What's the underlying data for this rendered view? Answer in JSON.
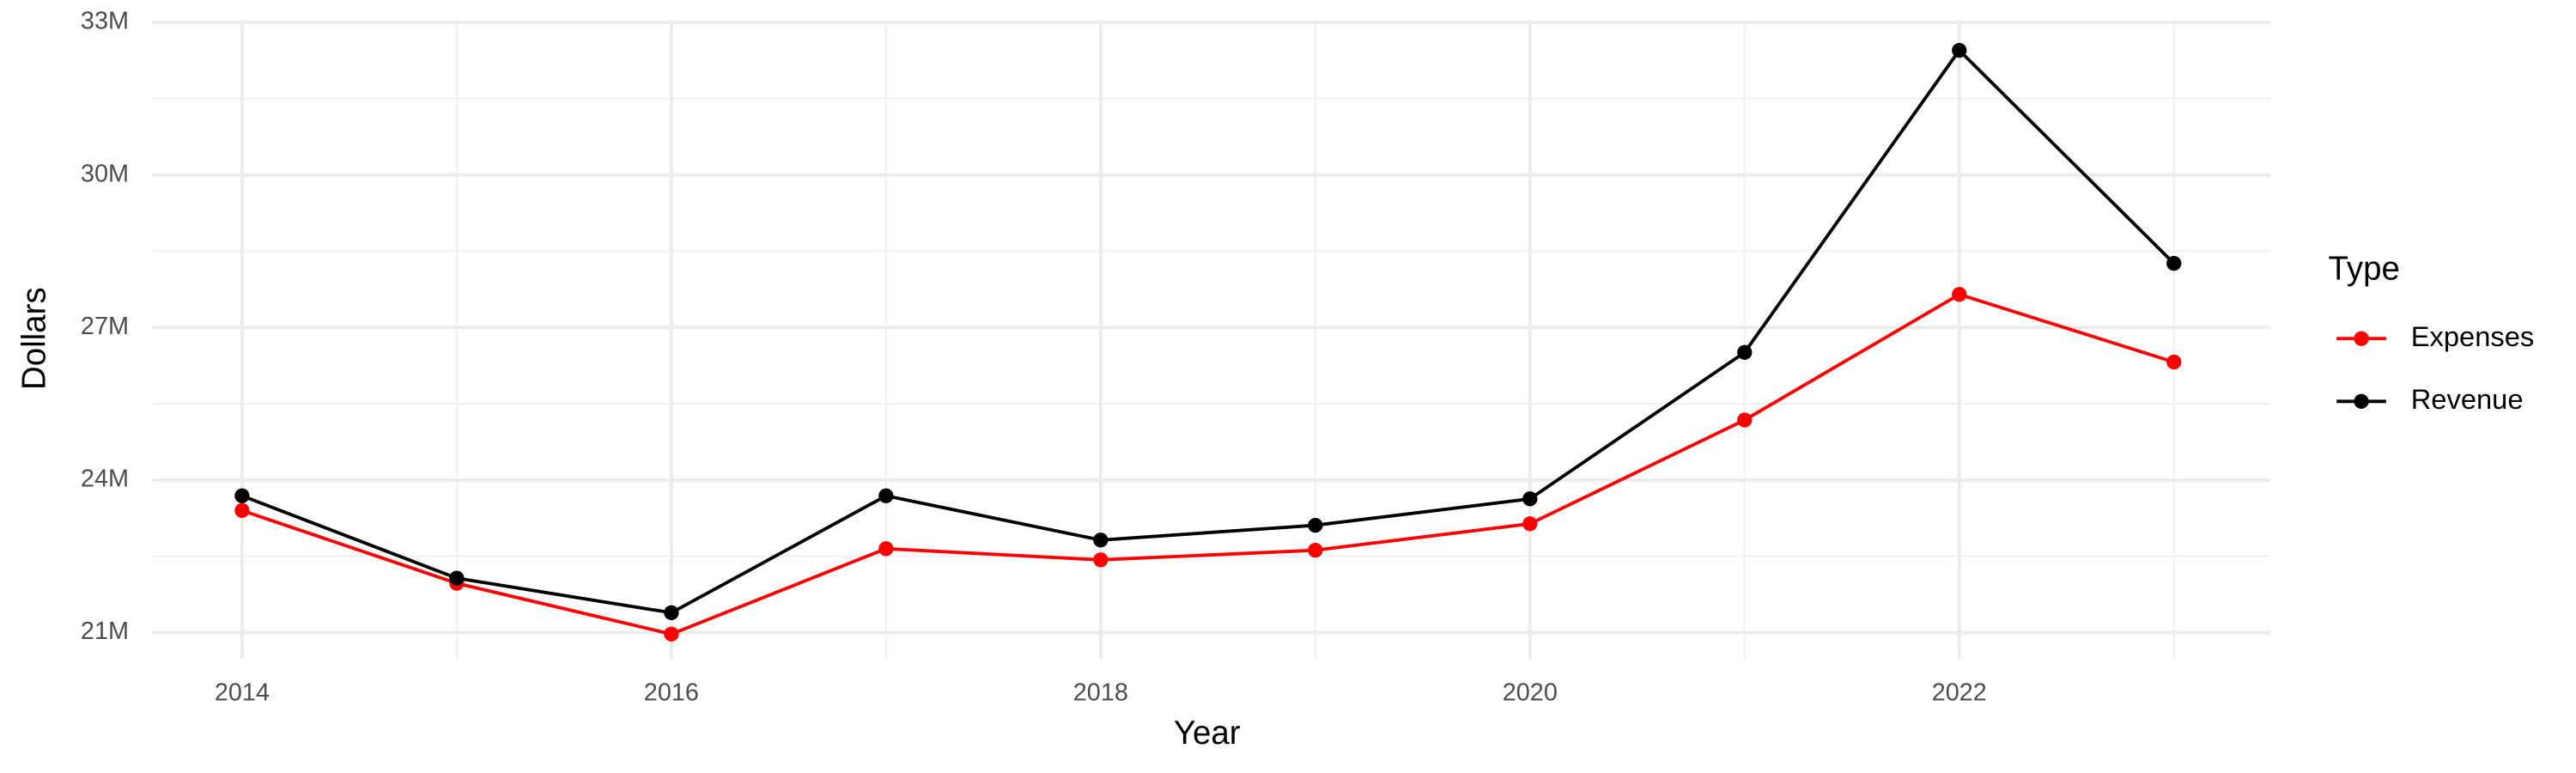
{
  "chart_data": {
    "type": "line",
    "x_label": "Year",
    "y_label": "Dollars",
    "legend_title": "Type",
    "legend": "right",
    "x": [
      2014,
      2015,
      2016,
      2017,
      2018,
      2019,
      2020,
      2021,
      2022,
      2023
    ],
    "series": [
      {
        "name": "Expenses",
        "color": "#ff0000",
        "values": [
          23400000,
          21970000,
          20970000,
          22650000,
          22430000,
          22620000,
          23140000,
          25180000,
          27650000,
          26320000
        ]
      },
      {
        "name": "Revenue",
        "color": "#000000",
        "values": [
          23690000,
          22070000,
          21390000,
          23690000,
          22820000,
          23110000,
          23630000,
          26510000,
          32450000,
          28260000
        ]
      }
    ],
    "xlim": [
      2013.58,
      2023.45
    ],
    "xticks": [
      2014,
      2016,
      2018,
      2020,
      2022
    ],
    "xminor": [
      2015,
      2017,
      2019,
      2021,
      2023
    ],
    "ylim": [
      20480000,
      33050000
    ],
    "yticks": [
      {
        "value": 21000000,
        "label": "21M"
      },
      {
        "value": 24000000,
        "label": "24M"
      },
      {
        "value": 27000000,
        "label": "27M"
      },
      {
        "value": 30000000,
        "label": "30M"
      },
      {
        "value": 33000000,
        "label": "33M"
      }
    ],
    "yminor": [
      22500000,
      25500000,
      28500000,
      31500000
    ],
    "grid": true
  }
}
